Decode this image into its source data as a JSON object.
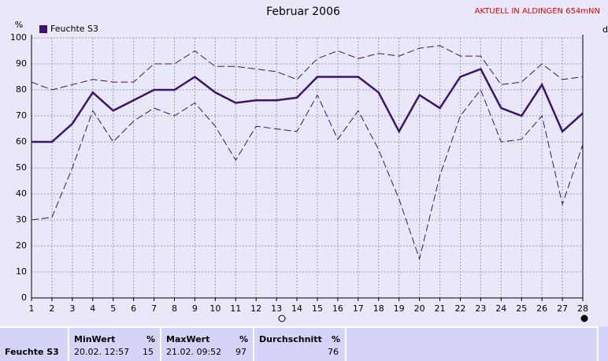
{
  "chart_data": {
    "type": "line",
    "title": "Februar 2006",
    "subtitle": "AKTUELL IN ALDINGEN 654mNN",
    "y_label": "%",
    "x_label": "d",
    "x": [
      1,
      2,
      3,
      4,
      5,
      6,
      7,
      8,
      9,
      10,
      11,
      12,
      13,
      14,
      15,
      16,
      17,
      18,
      19,
      20,
      21,
      22,
      23,
      24,
      25,
      26,
      27,
      28
    ],
    "xlim": [
      1,
      28
    ],
    "xticks": [
      1,
      2,
      3,
      4,
      5,
      6,
      7,
      8,
      9,
      10,
      11,
      12,
      13,
      14,
      15,
      16,
      17,
      18,
      19,
      20,
      21,
      22,
      23,
      24,
      25,
      26,
      27,
      28
    ],
    "ylim": [
      0,
      100
    ],
    "yticks": [
      0,
      10,
      20,
      30,
      40,
      50,
      60,
      70,
      80,
      90,
      100
    ],
    "grid": true,
    "legend": "top-left",
    "series": [
      {
        "name": "Feuchte S3",
        "color": "#3c1470",
        "line_style": "solid",
        "values": [
          60,
          60,
          67,
          79,
          72,
          76,
          80,
          80,
          85,
          79,
          75,
          76,
          76,
          77,
          85,
          85,
          85,
          79,
          64,
          78,
          73,
          85,
          88,
          73,
          70,
          82,
          64,
          71
        ]
      },
      {
        "color": "#3c1470",
        "line_style": "dashed",
        "values": [
          83,
          80,
          82,
          84,
          83,
          83,
          90,
          90,
          95,
          89,
          89,
          88,
          87,
          84,
          92,
          95,
          92,
          94,
          93,
          96,
          97,
          93,
          93,
          82,
          83,
          90,
          84,
          85
        ]
      },
      {
        "color": "#3c1470",
        "line_style": "dashed",
        "values": [
          30,
          31,
          50,
          72,
          60,
          68,
          73,
          70,
          75,
          66,
          53,
          66,
          65,
          64,
          78,
          61,
          72,
          57,
          38,
          15,
          47,
          70,
          80,
          60,
          61,
          70,
          36,
          59
        ]
      }
    ]
  },
  "table": {
    "row_label": "Feuchte S3",
    "columns": [
      {
        "header": "MinWert",
        "unit": "%",
        "time": "20.02.  12:57",
        "value": "15"
      },
      {
        "header": "MaxWert",
        "unit": "%",
        "time": "21.02.  09:52",
        "value": "97"
      },
      {
        "header": "Durchschnitt",
        "unit": "%",
        "value": "76"
      }
    ]
  }
}
